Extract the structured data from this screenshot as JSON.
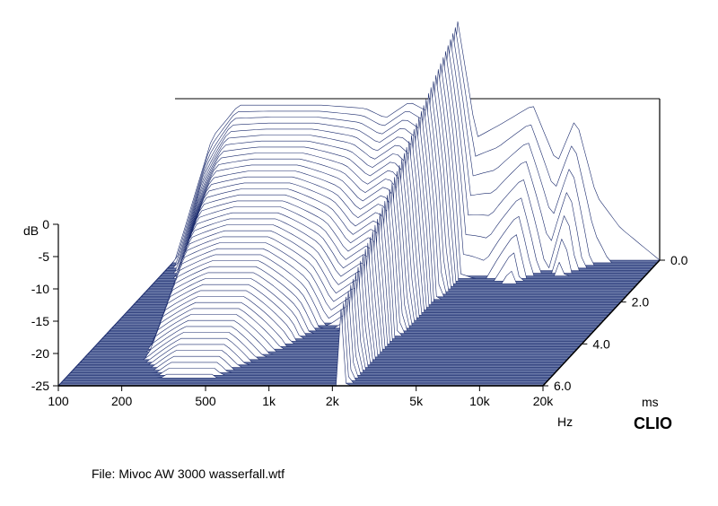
{
  "meta": {
    "type": "waterfall-3d",
    "title_caption": "File: Mivoc AW 3000 wasserfall.wtf",
    "brand": "CLIO",
    "background_color": "#ffffff",
    "stroke_color": "#1a2a6c",
    "floor_fill": "#6b7aa8",
    "floor_line": "#3a4a8c",
    "surface_fill": "#ffffff",
    "axis_font_size": 14,
    "caption_font_size": 14,
    "brand_font_size": 18
  },
  "axes": {
    "yLabel": "dB",
    "yTicks": [
      "0",
      "-5",
      "-10",
      "-15",
      "-20",
      "-25"
    ],
    "yRange": [
      -25,
      0
    ],
    "xLabel": "Hz",
    "xTicks": [
      "100",
      "200",
      "500",
      "1k",
      "2k",
      "5k",
      "10k",
      "20k"
    ],
    "xLogMin": 100,
    "xLogMax": 20000,
    "zLabel": "ms",
    "zTicks": [
      "0.0",
      "2.0",
      "4.0",
      "6.0"
    ],
    "zRange": [
      0.0,
      6.0
    ]
  },
  "geometry": {
    "originX": 65,
    "originY": 430,
    "xAxisLenPx": 540,
    "zDxPx": 130,
    "zDyPx": -140,
    "yAxisLenPx": 180,
    "nSlices": 48,
    "nPointsPerSlice": 96
  },
  "spectrum": {
    "freq_anchors_hz": [
      100,
      150,
      200,
      300,
      500,
      800,
      1000,
      1300,
      1700,
      2000,
      2200,
      2700,
      3500,
      5000,
      6500,
      8000,
      10000,
      13000,
      20000
    ],
    "t0_db": [
      -25,
      -6,
      -1,
      -1,
      -1,
      -1.5,
      -3,
      -0.5,
      -2.5,
      -4,
      12,
      -6,
      -4,
      -1,
      -10,
      -3,
      -15,
      -20,
      -25
    ],
    "decay_ms_anchors": [
      2.0,
      2.5,
      5.0,
      6.0,
      6.0,
      4.5,
      3.5,
      3.5,
      2.5,
      2.0,
      6.0,
      1.2,
      1.0,
      1.3,
      0.8,
      1.0,
      0.6,
      0.4,
      0.3
    ]
  }
}
